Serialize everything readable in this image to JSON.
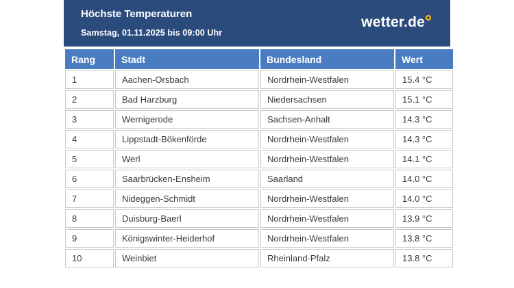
{
  "page": {
    "title": "Höchste Temperaturen",
    "subtitle": "Samstag, 01.11.2025 bis 09:00 Uhr",
    "logo": {
      "text": "wetter.de",
      "ring_icon": "degree-ring-icon",
      "ring_color": "#fdc300"
    },
    "colors": {
      "banner_bg": "#2b4b7d",
      "table_header_bg": "#4a7cc2",
      "border": "#c9c9c9",
      "cell_text": "#3a3a3a",
      "header_text": "#ffffff"
    }
  },
  "chart_data": {
    "type": "table",
    "title": "Höchste Temperaturen",
    "subtitle": "Samstag, 01.11.2025 bis 09:00 Uhr",
    "columns": [
      "Rang",
      "Stadt",
      "Bundesland",
      "Wert"
    ],
    "rows": [
      [
        "1",
        "Aachen-Orsbach",
        "Nordrhein-Westfalen",
        "15.4 °C"
      ],
      [
        "2",
        "Bad Harzburg",
        "Niedersachsen",
        "15.1 °C"
      ],
      [
        "3",
        "Wernigerode",
        "Sachsen-Anhalt",
        "14.3 °C"
      ],
      [
        "4",
        "Lippstadt-Bökenförde",
        "Nordrhein-Westfalen",
        "14.3 °C"
      ],
      [
        "5",
        "Werl",
        "Nordrhein-Westfalen",
        "14.1 °C"
      ],
      [
        "6",
        "Saarbrücken-Ensheim",
        "Saarland",
        "14.0 °C"
      ],
      [
        "7",
        "Nideggen-Schmidt",
        "Nordrhein-Westfalen",
        "14.0 °C"
      ],
      [
        "8",
        "Duisburg-Baerl",
        "Nordrhein-Westfalen",
        "13.9 °C"
      ],
      [
        "9",
        "Königswinter-Heiderhof",
        "Nordrhein-Westfalen",
        "13.8 °C"
      ],
      [
        "10",
        "Weinbiet",
        "Rheinland-Pfalz",
        "13.8 °C"
      ]
    ],
    "unit": "°C",
    "values_celsius": [
      15.4,
      15.1,
      14.3,
      14.3,
      14.1,
      14.0,
      14.0,
      13.9,
      13.8,
      13.8
    ]
  }
}
